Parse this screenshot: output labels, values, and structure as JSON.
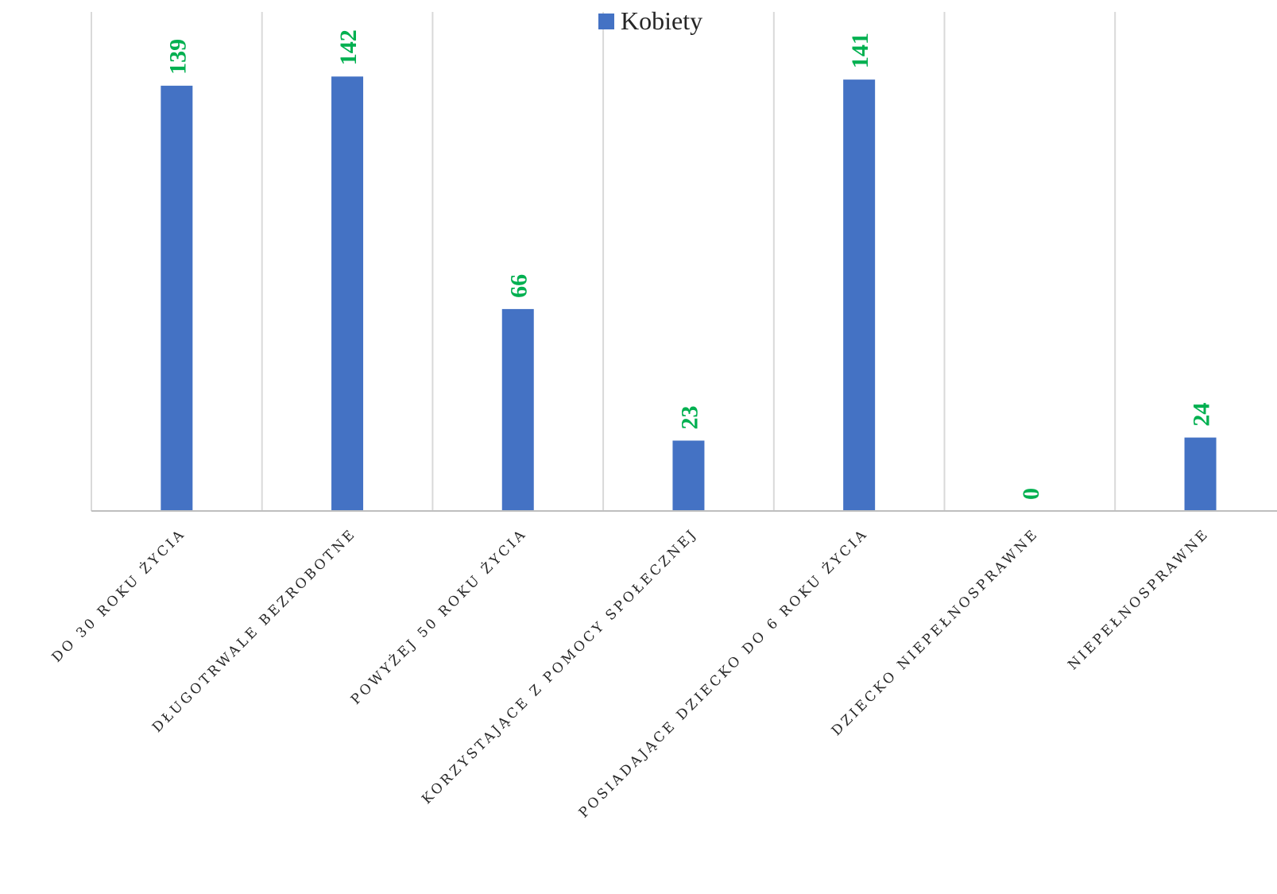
{
  "chart_data": {
    "type": "bar",
    "categories": [
      "DO 30 ROKU ŻYCIA",
      "DŁUGOTRWALE BEZROBOTNE",
      "POWYŻEJ 50 ROKU ŻYCIA",
      "KORZYSTAJĄCE Z POMOCY SPOŁECZNEJ",
      "POSIADAJĄCE DZIECKO DO 6 ROKU ŻYCIA",
      "DZIECKO NIEPEŁNOSPRAWNE",
      "NIEPEŁNOSPRAWNE"
    ],
    "series": [
      {
        "name": "Kobiety",
        "values": [
          139,
          142,
          66,
          23,
          141,
          0,
          24
        ],
        "color": "#4472c4"
      }
    ],
    "data_label_color": "#00b050",
    "ylim": [
      0,
      160
    ],
    "grid": "vertical",
    "legend_position": "top"
  }
}
